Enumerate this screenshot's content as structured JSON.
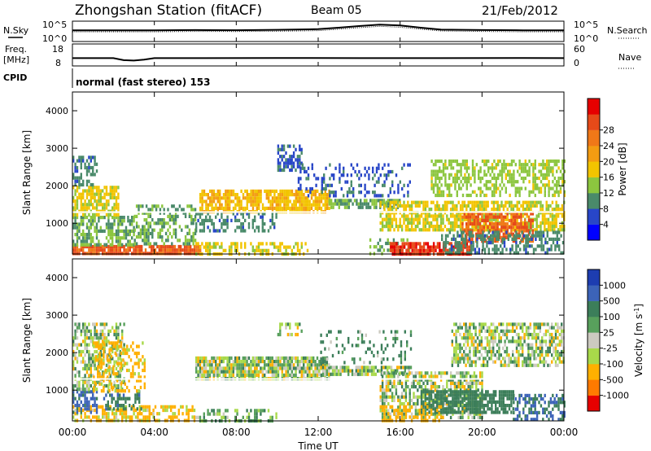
{
  "header": {
    "title": "Zhongshan Station (fitACF)",
    "beam": "Beam 05",
    "date": "21/Feb/2012"
  },
  "top_panels": {
    "nsky_label": "N.Sky",
    "nsearch_label": "N.Search",
    "noise_ticks": [
      "10^5",
      "10^0"
    ],
    "freq_label": "Freq.",
    "freq_unit": "[MHz]",
    "freq_ticks": [
      "18",
      "8"
    ],
    "nave_label": "Nave",
    "nave_ticks": [
      "60",
      "0"
    ],
    "cpid_label": "CPID",
    "cpid_text": "normal (fast stereo) 153"
  },
  "colors": {
    "power": [
      "#0000ff",
      "#2846c8",
      "#4a8a6a",
      "#8cc63f",
      "#f2c400",
      "#f39c12",
      "#f07818",
      "#e64a19",
      "#e60000"
    ],
    "velocity": [
      "#e60000",
      "#ff7a00",
      "#ffb000",
      "#a8d94a",
      "#cccac0",
      "#58a05c",
      "#3c7e5a",
      "#3c63b8",
      "#1d3db0"
    ]
  },
  "chart_data": [
    {
      "type": "line",
      "panel": "noise",
      "series": [
        {
          "name": "N.Sky",
          "x": [
            0,
            2,
            4,
            6,
            8,
            10,
            12,
            13,
            14,
            15,
            16,
            17,
            18,
            20,
            22,
            24
          ],
          "values": [
            600,
            600,
            600,
            700,
            650,
            800,
            1200,
            3000,
            8000,
            20000,
            12000,
            3000,
            900,
            700,
            600,
            600
          ]
        },
        {
          "name": "N.Search",
          "x": [
            0,
            2,
            4,
            6,
            8,
            10,
            12,
            13,
            14,
            15,
            16,
            17,
            18,
            20,
            22,
            24
          ],
          "values": [
            250,
            250,
            250,
            300,
            280,
            350,
            500,
            1200,
            3000,
            7000,
            4000,
            1200,
            400,
            300,
            250,
            250
          ]
        }
      ],
      "ylim": [
        1,
        100000
      ],
      "yscale": "log",
      "xlim": [
        0,
        24
      ]
    },
    {
      "type": "line",
      "panel": "frequency",
      "series": [
        {
          "name": "Freq.",
          "x": [
            0,
            2,
            2.5,
            3,
            3.5,
            4,
            6,
            10,
            14,
            18,
            22,
            24
          ],
          "values": [
            11.3,
            11.3,
            10.2,
            10.0,
            10.5,
            11.3,
            11.3,
            11.4,
            11.3,
            11.3,
            11.4,
            11.3
          ]
        },
        {
          "name": "Nave",
          "x": [
            0,
            4,
            8,
            12,
            16,
            20,
            24
          ],
          "values": [
            18,
            18,
            18,
            18,
            18,
            18,
            18
          ]
        }
      ],
      "ylim": [
        8,
        18
      ],
      "xlim": [
        0,
        24
      ]
    },
    {
      "type": "heatmap",
      "panel": "power",
      "colorbar_label": "Power [dB]",
      "colorbar_ticks": [
        "4",
        "8",
        "12",
        "16",
        "20",
        "24",
        "28"
      ],
      "clim": [
        0,
        30
      ],
      "ylabel": "Slant Range [km]",
      "yticks": [
        "1000",
        "2000",
        "3000",
        "4000"
      ],
      "ylim": [
        180,
        4500
      ],
      "xlim": [
        0,
        24
      ],
      "regions": [
        {
          "t0": 0.0,
          "t1": 6.2,
          "r0": 200,
          "r1": 420,
          "value": 24,
          "density": 0.85
        },
        {
          "t0": 0.0,
          "t1": 3.0,
          "r0": 420,
          "r1": 1200,
          "value": 10,
          "density": 0.6
        },
        {
          "t0": 0.0,
          "t1": 2.2,
          "r0": 1200,
          "r1": 2000,
          "value": 14,
          "density": 0.7
        },
        {
          "t0": 0.0,
          "t1": 1.2,
          "r0": 2000,
          "r1": 2800,
          "value": 8,
          "density": 0.5
        },
        {
          "t0": 3.0,
          "t1": 6.0,
          "r0": 420,
          "r1": 1500,
          "value": 10,
          "density": 0.45
        },
        {
          "t0": 6.0,
          "t1": 11.5,
          "r0": 200,
          "r1": 500,
          "value": 14,
          "density": 0.5
        },
        {
          "t0": 6.2,
          "t1": 12.5,
          "r0": 1300,
          "r1": 1900,
          "value": 16,
          "density": 0.8
        },
        {
          "t0": 6.0,
          "t1": 10.0,
          "r0": 800,
          "r1": 1300,
          "value": 8,
          "density": 0.45
        },
        {
          "t0": 10.0,
          "t1": 11.2,
          "r0": 2400,
          "r1": 3100,
          "value": 6,
          "density": 0.6
        },
        {
          "t0": 12.5,
          "t1": 16.0,
          "r0": 1450,
          "r1": 1650,
          "value": 10,
          "density": 0.7
        },
        {
          "t0": 11.0,
          "t1": 16.5,
          "r0": 1700,
          "r1": 2600,
          "value": 6,
          "density": 0.25
        },
        {
          "t0": 14.5,
          "t1": 16.5,
          "r0": 200,
          "r1": 600,
          "value": 10,
          "density": 0.35
        },
        {
          "t0": 15.0,
          "t1": 24.0,
          "r0": 800,
          "r1": 1600,
          "value": 14,
          "density": 0.7
        },
        {
          "t0": 15.5,
          "t1": 19.5,
          "r0": 200,
          "r1": 500,
          "value": 26,
          "density": 0.8
        },
        {
          "t0": 19.0,
          "t1": 22.5,
          "r0": 500,
          "r1": 1300,
          "value": 24,
          "density": 0.65
        },
        {
          "t0": 17.5,
          "t1": 24.0,
          "r0": 1700,
          "r1": 2700,
          "value": 12,
          "density": 0.55
        },
        {
          "t0": 18.0,
          "t1": 24.0,
          "r0": 200,
          "r1": 800,
          "value": 8,
          "density": 0.5
        }
      ]
    },
    {
      "type": "heatmap",
      "panel": "velocity",
      "colorbar_label": "Velocity [m s^-1]",
      "colorbar_ticks": [
        "-1000",
        "-500",
        "-100",
        "-25",
        "25",
        "100",
        "500",
        "1000"
      ],
      "clim": [
        -1200,
        1200
      ],
      "ylabel": "Slant Range [km]",
      "yticks": [
        "1000",
        "2000",
        "3000",
        "4000"
      ],
      "ylim": [
        180,
        4500
      ],
      "xlim": [
        0,
        24
      ],
      "xlabel": "Time UT",
      "xticks": [
        "00:00",
        "04:00",
        "08:00",
        "12:00",
        "16:00",
        "20:00",
        "00:00"
      ],
      "regions": [
        {
          "t0": 0.0,
          "t1": 6.0,
          "r0": 200,
          "r1": 600,
          "value": -150,
          "density": 0.6
        },
        {
          "t0": 0.0,
          "t1": 1.2,
          "r0": 400,
          "r1": 1000,
          "value": 600,
          "density": 0.6
        },
        {
          "t0": 1.5,
          "t1": 3.5,
          "r0": 500,
          "r1": 1000,
          "value": 400,
          "density": 0.4
        },
        {
          "t0": 0.0,
          "t1": 2.5,
          "r0": 1000,
          "r1": 2800,
          "value": 0,
          "density": 0.55
        },
        {
          "t0": 1.0,
          "t1": 3.5,
          "r0": 1000,
          "r1": 2300,
          "value": -200,
          "density": 0.35
        },
        {
          "t0": 6.0,
          "t1": 12.5,
          "r0": 1300,
          "r1": 1900,
          "value": 0,
          "density": 0.85
        },
        {
          "t0": 6.0,
          "t1": 10.0,
          "r0": 200,
          "r1": 500,
          "value": 60,
          "density": 0.4
        },
        {
          "t0": 10.0,
          "t1": 11.2,
          "r0": 2500,
          "r1": 2800,
          "value": 0,
          "density": 0.5
        },
        {
          "t0": 12.0,
          "t1": 16.5,
          "r0": 1450,
          "r1": 1650,
          "value": 0,
          "density": 0.7
        },
        {
          "t0": 12.0,
          "t1": 16.5,
          "r0": 1700,
          "r1": 2600,
          "value": 150,
          "density": 0.2
        },
        {
          "t0": 15.0,
          "t1": 20.0,
          "r0": 300,
          "r1": 1500,
          "value": 0,
          "density": 0.6
        },
        {
          "t0": 17.0,
          "t1": 21.5,
          "r0": 400,
          "r1": 1000,
          "value": 250,
          "density": 0.75
        },
        {
          "t0": 18.5,
          "t1": 24.0,
          "r0": 1700,
          "r1": 2800,
          "value": 0,
          "density": 0.6
        },
        {
          "t0": 21.5,
          "t1": 24.0,
          "r0": 250,
          "r1": 900,
          "value": 500,
          "density": 0.5
        },
        {
          "t0": 15.0,
          "t1": 18.0,
          "r0": 200,
          "r1": 600,
          "value": -300,
          "density": 0.4
        }
      ]
    }
  ]
}
